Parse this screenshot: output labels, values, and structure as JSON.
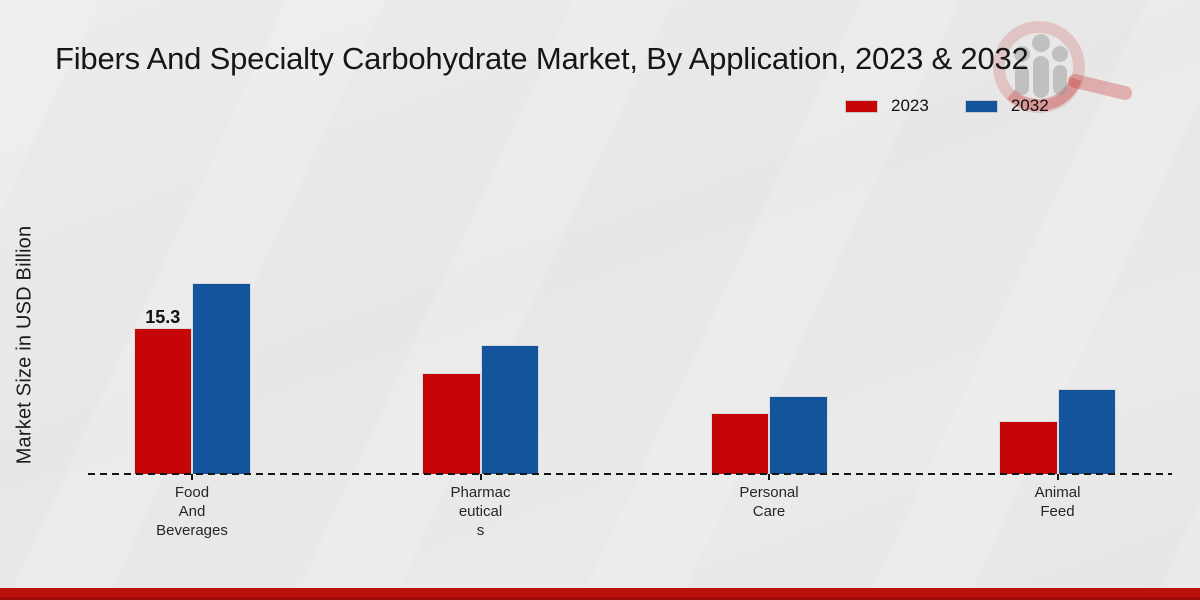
{
  "title": "Fibers And Specialty Carbohydrate Market, By Application, 2023 & 2032",
  "ylabel": "Market Size in USD Billion",
  "legend": [
    {
      "label": "2023",
      "color": "#c60606"
    },
    {
      "label": "2032",
      "color": "#14549c"
    }
  ],
  "watermark_icon": "magnifier-growth-chart-logo",
  "footer_accent_color": "#b9100d",
  "chart_data": {
    "type": "bar",
    "title": "Fibers And Specialty Carbohydrate Market, By Application, 2023 & 2032",
    "xlabel": "",
    "ylabel": "Market Size in USD Billion",
    "categories": [
      "Food And Beverages",
      "Pharmaceuticals",
      "Personal Care",
      "Animal Feed"
    ],
    "category_label_lines": [
      [
        "Food",
        "And",
        "Beverages"
      ],
      [
        "Pharmac",
        "eutical",
        "s"
      ],
      [
        "Personal",
        "Care"
      ],
      [
        "Animal",
        "Feed"
      ]
    ],
    "series": [
      {
        "name": "2023",
        "color": "#c60606",
        "values": [
          15.3,
          10.6,
          6.4,
          5.6
        ]
      },
      {
        "name": "2032",
        "color": "#14549c",
        "values": [
          20.0,
          13.5,
          8.2,
          8.9
        ]
      }
    ],
    "data_labels": [
      {
        "series_index": 0,
        "category_index": 0,
        "text": "15.3"
      }
    ],
    "ylim": [
      0,
      22
    ],
    "grid": false,
    "baseline_style": "dashed",
    "legend_position": "top-right"
  }
}
